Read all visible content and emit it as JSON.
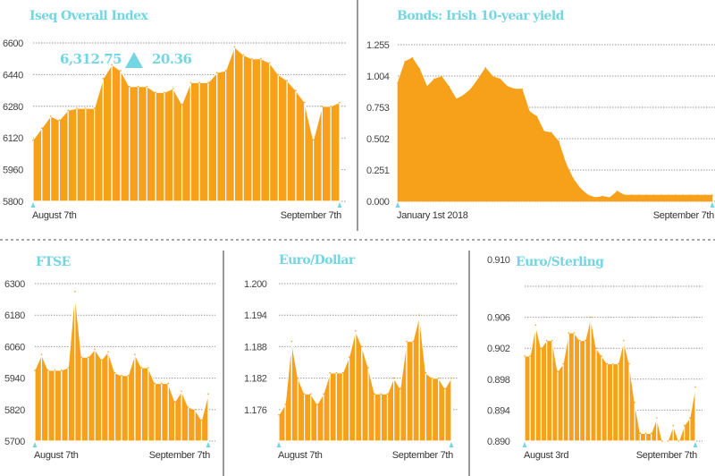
{
  "colors": {
    "area": "#f7a11a",
    "title": "#74d6e2",
    "separator": "#ffffff",
    "grid": "#999999"
  },
  "iseq_annotation": {
    "value": "6,312.75",
    "change": "20.36",
    "direction": "up"
  },
  "chart_data": [
    {
      "type": "area",
      "title": "Iseq Overall Index",
      "x_labels": [
        "August 7th",
        "September 7th"
      ],
      "ylim": [
        5800,
        6600
      ],
      "yticks": [
        5800,
        5960,
        6120,
        6280,
        6440,
        6600
      ],
      "ytick_labels": [
        "5800",
        "5960",
        "6120",
        "6280",
        "6440",
        "6600"
      ],
      "grid": true,
      "values": [
        6110,
        6170,
        6230,
        6210,
        6260,
        6270,
        6270,
        6270,
        6420,
        6490,
        6460,
        6380,
        6380,
        6380,
        6350,
        6350,
        6370,
        6290,
        6400,
        6400,
        6400,
        6450,
        6460,
        6580,
        6540,
        6520,
        6520,
        6500,
        6440,
        6410,
        6360,
        6300,
        6110,
        6280,
        6280,
        6300
      ]
    },
    {
      "type": "area",
      "title": "Bonds: Irish 10-year yield",
      "x_labels": [
        "January 1st 2018",
        "September 7th"
      ],
      "ylim": [
        0,
        1.255
      ],
      "yticks": [
        0,
        0.251,
        0.502,
        0.753,
        1.004,
        1.255
      ],
      "ytick_labels": [
        "0.000",
        "0.251",
        "0.502",
        "0.753",
        "1.004",
        "1.255"
      ],
      "grid": true,
      "values": [
        0.95,
        1.12,
        1.15,
        1.06,
        0.92,
        0.98,
        1.0,
        0.92,
        0.82,
        0.85,
        0.9,
        0.98,
        1.07,
        1.0,
        0.98,
        0.92,
        0.9,
        0.9,
        0.72,
        0.68,
        0.56,
        0.55,
        0.48,
        0.3,
        0.18,
        0.1,
        0.05,
        0.03,
        0.04,
        0.03,
        0.08,
        0.05,
        0.05,
        0.05,
        0.05,
        0.05,
        0.05,
        0.05,
        0.05,
        0.05,
        0.05,
        0.05,
        0.05,
        0.05
      ]
    },
    {
      "type": "area",
      "title": "FTSE",
      "x_labels": [
        "August 7th",
        "September 7th"
      ],
      "ylim": [
        5700,
        6300
      ],
      "yticks": [
        5700,
        5820,
        5940,
        6060,
        6180,
        6300
      ],
      "ytick_labels": [
        "5700",
        "5820",
        "5940",
        "6060",
        "6180",
        "6300"
      ],
      "grid": true,
      "values": [
        5970,
        6030,
        5970,
        5970,
        5970,
        5980,
        6270,
        6020,
        6020,
        6050,
        6010,
        6040,
        5960,
        5950,
        5950,
        6030,
        5980,
        5980,
        5920,
        5920,
        5920,
        5850,
        5890,
        5830,
        5820,
        5780,
        5880
      ]
    },
    {
      "type": "area",
      "title": "Euro/Dollar",
      "x_labels": [
        "August 7th",
        "September 7th"
      ],
      "ylim": [
        1.17,
        1.2
      ],
      "yticks": [
        1.176,
        1.182,
        1.188,
        1.194,
        1.2
      ],
      "ytick_labels": [
        "1.176",
        "1.182",
        "1.188",
        "1.194",
        "1.200"
      ],
      "grid": true,
      "values": [
        1.175,
        1.177,
        1.189,
        1.182,
        1.179,
        1.179,
        1.177,
        1.179,
        1.183,
        1.183,
        1.183,
        1.186,
        1.191,
        1.188,
        1.184,
        1.179,
        1.179,
        1.179,
        1.182,
        1.18,
        1.189,
        1.189,
        1.194,
        1.183,
        1.182,
        1.182,
        1.18,
        1.182
      ]
    },
    {
      "type": "area",
      "title": "Euro/Sterling",
      "x_labels": [
        "August 3rd",
        "September 7th"
      ],
      "ylim": [
        0.89,
        0.91
      ],
      "yticks": [
        0.89,
        0.894,
        0.898,
        0.902,
        0.906,
        0.91
      ],
      "ytick_labels": [
        "0.890",
        "0.894",
        "0.898",
        "0.902",
        "0.906",
        "0.910"
      ],
      "grid": true,
      "values": [
        0.901,
        0.901,
        0.905,
        0.902,
        0.903,
        0.903,
        0.899,
        0.9,
        0.904,
        0.904,
        0.903,
        0.903,
        0.906,
        0.902,
        0.901,
        0.9,
        0.9,
        0.9,
        0.903,
        0.9,
        0.895,
        0.891,
        0.891,
        0.891,
        0.893,
        0.89,
        0.89,
        0.892,
        0.89,
        0.892,
        0.893,
        0.897
      ]
    }
  ]
}
